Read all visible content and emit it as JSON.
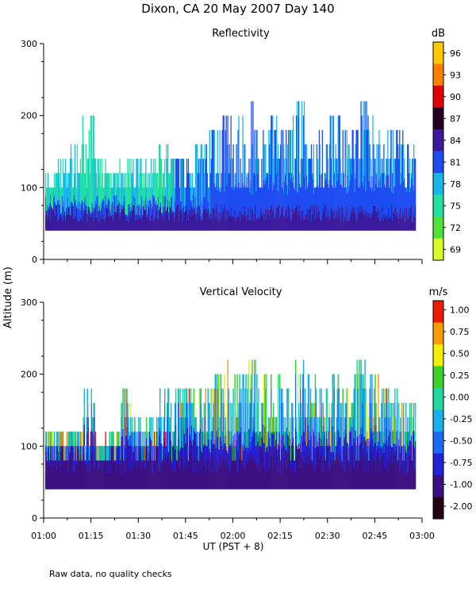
{
  "page": {
    "title": "Dixon, CA 20 May 2007  Day 140",
    "y_axis_label": "Altitude (m)",
    "x_axis_label": "UT  (PST + 8)",
    "footnote": "Raw data, no quality checks"
  },
  "chart_data": [
    {
      "type": "heatmap",
      "title": "Reflectivity",
      "colorbar_unit": "dB",
      "ylim": [
        0,
        300
      ],
      "y_ticks": [
        "0",
        "100",
        "200",
        "300"
      ],
      "xlim": [
        "01:00",
        "03:00"
      ],
      "x_ticks": [
        "01:00",
        "01:15",
        "01:30",
        "01:45",
        "02:00",
        "02:15",
        "02:30",
        "02:45",
        "03:00"
      ],
      "colorbar_labels": [
        "69",
        "72",
        "75",
        "78",
        "81",
        "84",
        "87",
        "90",
        "93",
        "96"
      ],
      "colors": [
        "#d7ff2a",
        "#4fe33a",
        "#22e0a0",
        "#19b6ea",
        "#1d4cf2",
        "#3a1a9a",
        "#22001e",
        "#e00000",
        "#ff8000",
        "#ffc800"
      ],
      "echo_base_m": 40,
      "echo_top_m": [
        120,
        140,
        160,
        200,
        140,
        120,
        140,
        140,
        140,
        160,
        140,
        140,
        160,
        180,
        200,
        200,
        220,
        180,
        200,
        180,
        220,
        160,
        180,
        200,
        180,
        220,
        200,
        180,
        180,
        160
      ]
    },
    {
      "type": "heatmap",
      "title": "Vertical Velocity",
      "colorbar_unit": "m/s",
      "ylim": [
        0,
        300
      ],
      "y_ticks": [
        "0",
        "100",
        "200",
        "300"
      ],
      "xlim": [
        "01:00",
        "03:00"
      ],
      "x_ticks": [
        "01:00",
        "01:15",
        "01:30",
        "01:45",
        "02:00",
        "02:15",
        "02:30",
        "02:45",
        "03:00"
      ],
      "colorbar_labels": [
        "-2.00",
        "-1.00",
        "-0.75",
        "-0.50",
        "-0.25",
        "0.00",
        "0.25",
        "0.50",
        "0.75",
        "1.00"
      ],
      "colors": [
        "#200012",
        "#3c1080",
        "#2222d8",
        "#1d6af2",
        "#19b0ea",
        "#22d6a0",
        "#3cd22a",
        "#f2f000",
        "#ff9a00",
        "#ee1a00"
      ],
      "echo_base_m": 40,
      "echo_top_m": [
        120,
        120,
        120,
        180,
        120,
        120,
        180,
        140,
        140,
        180,
        180,
        180,
        180,
        200,
        220,
        200,
        220,
        200,
        200,
        180,
        220,
        200,
        180,
        200,
        180,
        220,
        200,
        180,
        180,
        160
      ]
    }
  ]
}
